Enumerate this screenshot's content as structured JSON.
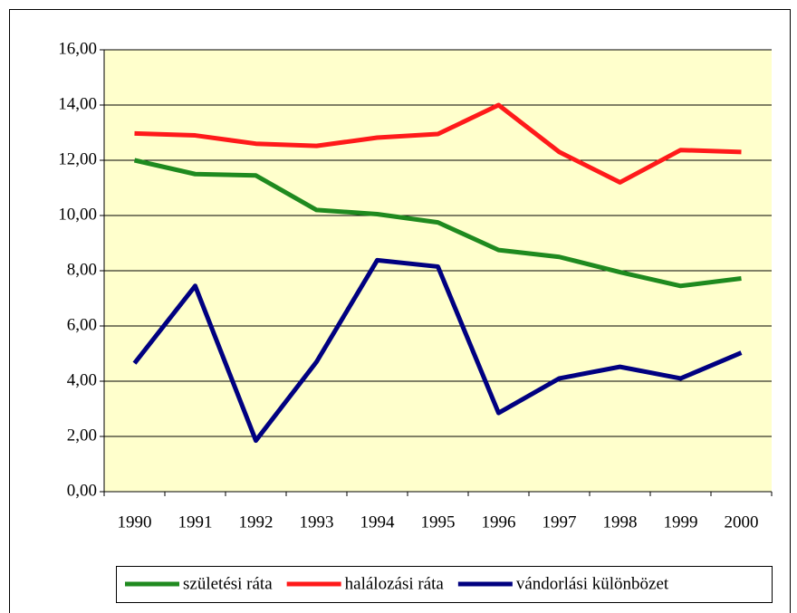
{
  "chart_data": {
    "type": "line",
    "categories": [
      "1990",
      "1991",
      "1992",
      "1993",
      "1994",
      "1995",
      "1996",
      "1997",
      "1998",
      "1999",
      "2000"
    ],
    "series": [
      {
        "name": "születési ráta",
        "color": "#1f8a1f",
        "values": [
          12.0,
          11.5,
          11.45,
          10.2,
          10.05,
          9.75,
          8.75,
          8.5,
          7.95,
          7.45,
          7.72
        ]
      },
      {
        "name": "halálozási ráta",
        "color": "#ff1a1a",
        "values": [
          12.97,
          12.9,
          12.6,
          12.52,
          12.82,
          12.95,
          14.0,
          12.3,
          11.2,
          12.37,
          12.3
        ]
      },
      {
        "name": "vándorlási különbözet",
        "color": "#000080",
        "values": [
          4.65,
          7.45,
          1.85,
          4.7,
          8.38,
          8.15,
          2.85,
          4.1,
          4.52,
          4.1,
          5.03
        ]
      }
    ],
    "ylim": [
      0,
      16
    ],
    "yticks": [
      {
        "value": 0,
        "label": "0,00"
      },
      {
        "value": 2,
        "label": "2,00"
      },
      {
        "value": 4,
        "label": "4,00"
      },
      {
        "value": 6,
        "label": "6,00"
      },
      {
        "value": 8,
        "label": "8,00"
      },
      {
        "value": 10,
        "label": "10,00"
      },
      {
        "value": 12,
        "label": "12,00"
      },
      {
        "value": 14,
        "label": "14,00"
      },
      {
        "value": 16,
        "label": "16,00"
      }
    ],
    "grid": true
  }
}
